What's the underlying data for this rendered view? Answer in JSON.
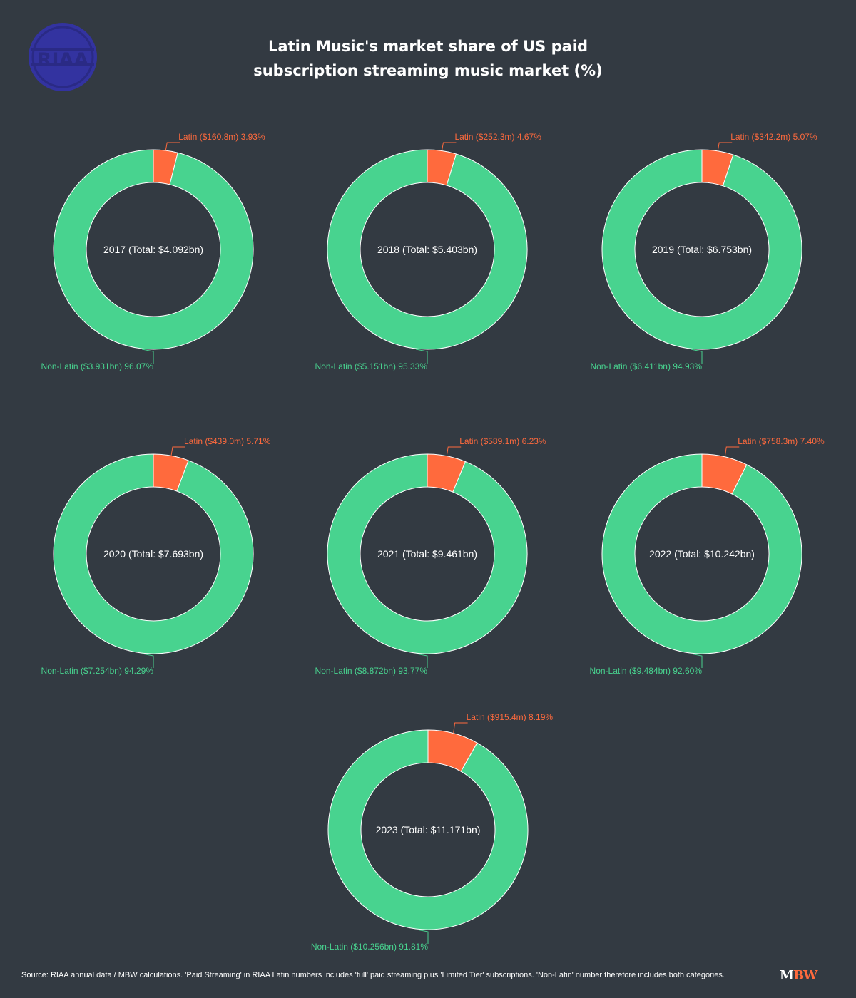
{
  "header": {
    "logo_text": "RIAA",
    "title_line1": "Latin Music's market share of US paid",
    "title_line2": "subscription streaming music market (%)"
  },
  "colors": {
    "background": "#333a42",
    "latin": "#ff6a3d",
    "non_latin": "#48d38f",
    "logo": "#3333a0"
  },
  "chart_data": [
    {
      "type": "pie",
      "center_label": "2017 (Total: $4.092bn)",
      "slices": [
        {
          "label": "Latin ($160.8m) 3.93%",
          "value": 3.93
        },
        {
          "label": "Non-Latin ($3.931bn) 96.07%",
          "value": 96.07
        }
      ]
    },
    {
      "type": "pie",
      "center_label": "2018 (Total: $5.403bn)",
      "slices": [
        {
          "label": "Latin ($252.3m) 4.67%",
          "value": 4.67
        },
        {
          "label": "Non-Latin ($5.151bn) 95.33%",
          "value": 95.33
        }
      ]
    },
    {
      "type": "pie",
      "center_label": "2019 (Total: $6.753bn)",
      "slices": [
        {
          "label": "Latin ($342.2m) 5.07%",
          "value": 5.07
        },
        {
          "label": "Non-Latin ($6.411bn) 94.93%",
          "value": 94.93
        }
      ]
    },
    {
      "type": "pie",
      "center_label": "2020 (Total: $7.693bn)",
      "slices": [
        {
          "label": "Latin ($439.0m) 5.71%",
          "value": 5.71
        },
        {
          "label": "Non-Latin ($7.254bn) 94.29%",
          "value": 94.29
        }
      ]
    },
    {
      "type": "pie",
      "center_label": "2021 (Total: $9.461bn)",
      "slices": [
        {
          "label": "Latin ($589.1m) 6.23%",
          "value": 6.23
        },
        {
          "label": "Non-Latin ($8.872bn) 93.77%",
          "value": 93.77
        }
      ]
    },
    {
      "type": "pie",
      "center_label": "2022 (Total: $10.242bn)",
      "slices": [
        {
          "label": "Latin ($758.3m) 7.40%",
          "value": 7.4
        },
        {
          "label": "Non-Latin ($9.484bn) 92.60%",
          "value": 92.6
        }
      ]
    },
    {
      "type": "pie",
      "center_label": "2023 (Total: $11.171bn)",
      "slices": [
        {
          "label": "Latin ($915.4m) 8.19%",
          "value": 8.19
        },
        {
          "label": "Non-Latin ($10.256bn) 91.81%",
          "value": 91.81
        }
      ]
    }
  ],
  "footer": {
    "source": "Source: RIAA annual data / MBW calculations. 'Paid Streaming' in RIAA Latin numbers includes 'full' paid streaming plus 'Limited Tier' subscriptions. 'Non-Latin' number therefore includes both categories.",
    "brand_m": "M",
    "brand_bw": "BW"
  }
}
